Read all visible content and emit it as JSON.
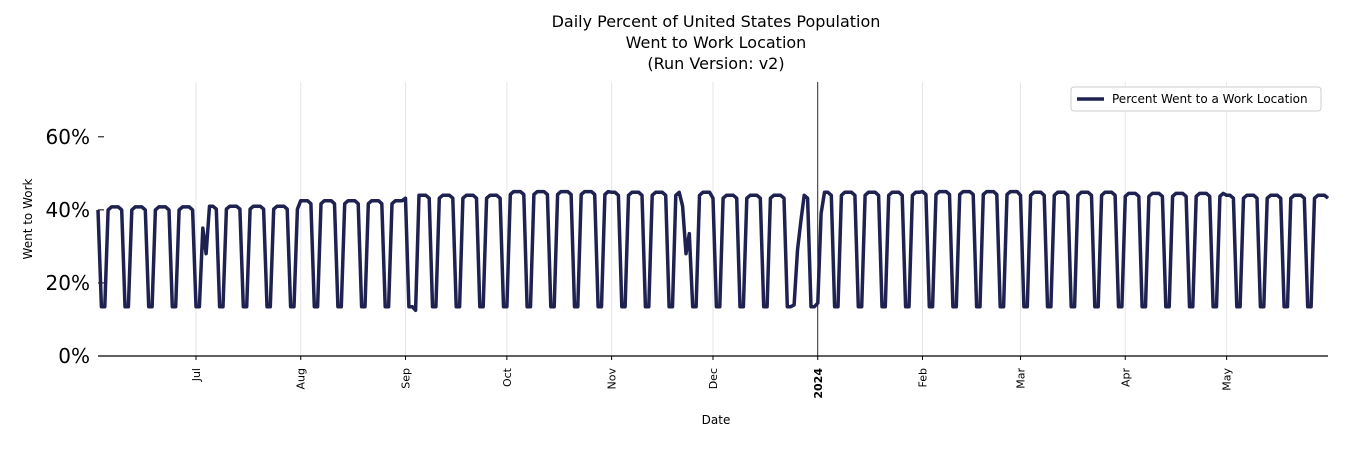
{
  "chart_data": {
    "type": "line",
    "title": [
      "Daily Percent of United States Population",
      "Went to Work Location",
      "(Run Version: v2)"
    ],
    "xlabel": "Date",
    "ylabel": "Went to Work",
    "ylim": [
      0,
      75
    ],
    "yticks": [
      0,
      20,
      40,
      60
    ],
    "ytick_labels": [
      "0%",
      "20%",
      "40%",
      "60%"
    ],
    "x_start": "2023-06-02",
    "x_end": "2024-05-31",
    "xtick_dates": [
      "2023-07-01",
      "2023-08-01",
      "2023-09-01",
      "2023-10-01",
      "2023-11-01",
      "2023-12-01",
      "2024-01-01",
      "2024-02-01",
      "2024-03-01",
      "2024-04-01",
      "2024-05-01"
    ],
    "xtick_labels": [
      "Jul",
      "Aug",
      "Sep",
      "Oct",
      "Nov",
      "Dec",
      "2024",
      "Feb",
      "Mar",
      "Apr",
      "May"
    ],
    "bold_ticks": [
      "2024"
    ],
    "vline_date": "2024-01-01",
    "grid": "vertical",
    "legend": "top-right",
    "line_color": "#1f2150",
    "series": [
      {
        "name": "Percent Went to a Work Location",
        "weekday_level_by_month": {
          "2023-06": 40.8,
          "2023-07": 41.0,
          "2023-08": 42.5,
          "2023-09": 44.0,
          "2023-10": 45.0,
          "2023-11": 44.8,
          "2023-12": 44.0,
          "2024-01": 44.8,
          "2024-02": 45.0,
          "2024-03": 44.8,
          "2024-04": 44.5,
          "2024-05": 44.0
        },
        "weekend_level": 13.5,
        "holidays": {
          "2023-07-04": 28.0,
          "2023-07-03": 35.0,
          "2023-09-04": 12.5,
          "2023-11-23": 28.0,
          "2023-11-24": 33.5,
          "2023-11-22": 41.0,
          "2023-12-25": 14.0,
          "2023-12-26": 29.0,
          "2023-12-27": 37.0,
          "2024-01-01": 14.5,
          "2024-01-02": 39.0
        }
      }
    ]
  }
}
